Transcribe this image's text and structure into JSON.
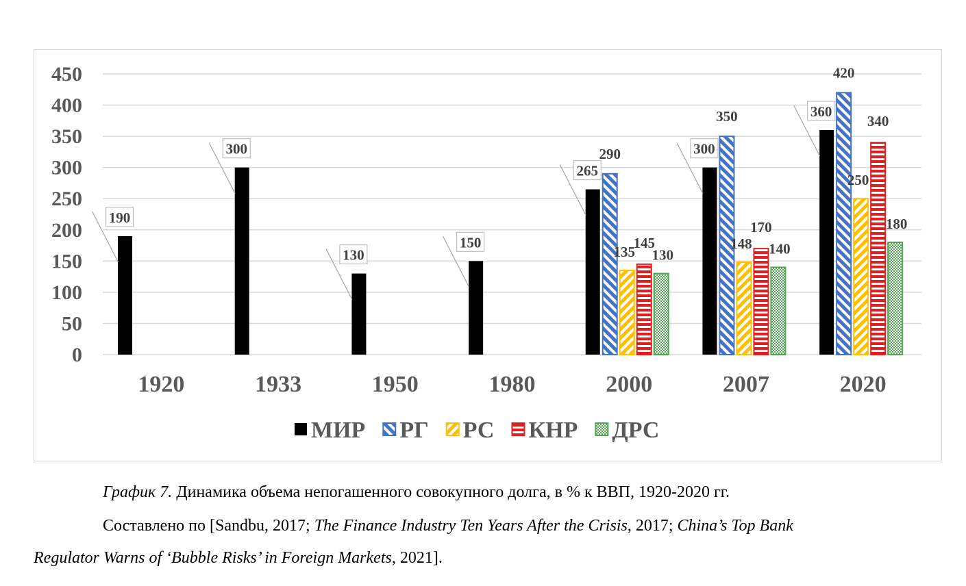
{
  "chart_data": {
    "type": "bar",
    "categories": [
      "1920",
      "1933",
      "1950",
      "1980",
      "2000",
      "2007",
      "2020"
    ],
    "series": [
      {
        "name": "МИР",
        "color": "#000000",
        "pattern": "solid",
        "values": [
          190,
          300,
          130,
          150,
          265,
          300,
          360
        ]
      },
      {
        "name": "РГ",
        "color": "#4472C4",
        "pattern": "wide-diagonal",
        "values": [
          null,
          null,
          null,
          null,
          290,
          350,
          420
        ]
      },
      {
        "name": "РС",
        "color": "#FFC000",
        "pattern": "wide-diagonal-down",
        "values": [
          null,
          null,
          null,
          null,
          135,
          148,
          250
        ]
      },
      {
        "name": "КНР",
        "color": "#E02020",
        "pattern": "horizontal-stripes",
        "values": [
          null,
          null,
          null,
          null,
          145,
          170,
          340
        ]
      },
      {
        "name": "ДРС",
        "color": "#4EA64E",
        "pattern": "checker",
        "values": [
          null,
          null,
          null,
          null,
          130,
          140,
          180
        ]
      }
    ],
    "yticks": [
      "0",
      "50",
      "100",
      "150",
      "200",
      "250",
      "300",
      "350",
      "400",
      "450"
    ],
    "ylim": [
      0,
      450
    ],
    "xlabel": "",
    "ylabel": "",
    "title": "",
    "grid": true,
    "legend": "bottom"
  },
  "caption": {
    "figure_label": "График 7.",
    "figure_text": " Динамика объема непогашенного совокупного долга, в % к ВВП, 1920-2020 гг.",
    "source_prefix": "Составлено по [Sandbu, 2017; ",
    "source_italic1": "The Finance Industry Ten Years After the Crisis",
    "source_mid": ", 2017; ",
    "source_italic2a": "China’s Top Bank",
    "source_italic2b": "Regulator Warns of ‘Bubble Risks’ in Foreign Markets",
    "source_end": ", 2021]."
  }
}
